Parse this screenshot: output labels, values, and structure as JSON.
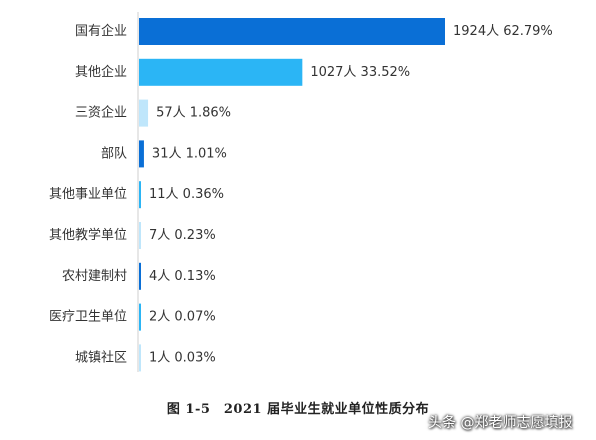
{
  "chart_data": {
    "type": "bar",
    "orientation": "horizontal",
    "categories": [
      "国有企业",
      "其他企业",
      "三资企业",
      "部队",
      "其他事业单位",
      "其他教学单位",
      "农村建制村",
      "医疗卫生单位",
      "城镇社区"
    ],
    "values": [
      1924,
      1027,
      57,
      31,
      11,
      7,
      4,
      2,
      1
    ],
    "data_labels": [
      "1924人 62.79%",
      "1027人 33.52%",
      "57人 1.86%",
      "31人 1.01%",
      "11人 0.36%",
      "7人 0.23%",
      "4人 0.13%",
      "2人 0.07%",
      "1人 0.03%"
    ],
    "colors": [
      "#0a6fd6",
      "#2bb5f5",
      "#bfe6fb",
      "#0a6fd6",
      "#2bb5f5",
      "#bfe6fb",
      "#0a6fd6",
      "#2bb5f5",
      "#bfe6fb"
    ],
    "xlim": [
      0,
      1924
    ],
    "grid": false,
    "legend": "none"
  },
  "caption": "图 1-5　2021 届毕业生就业单位性质分布",
  "watermark": "头条 @郑老师志愿填报"
}
